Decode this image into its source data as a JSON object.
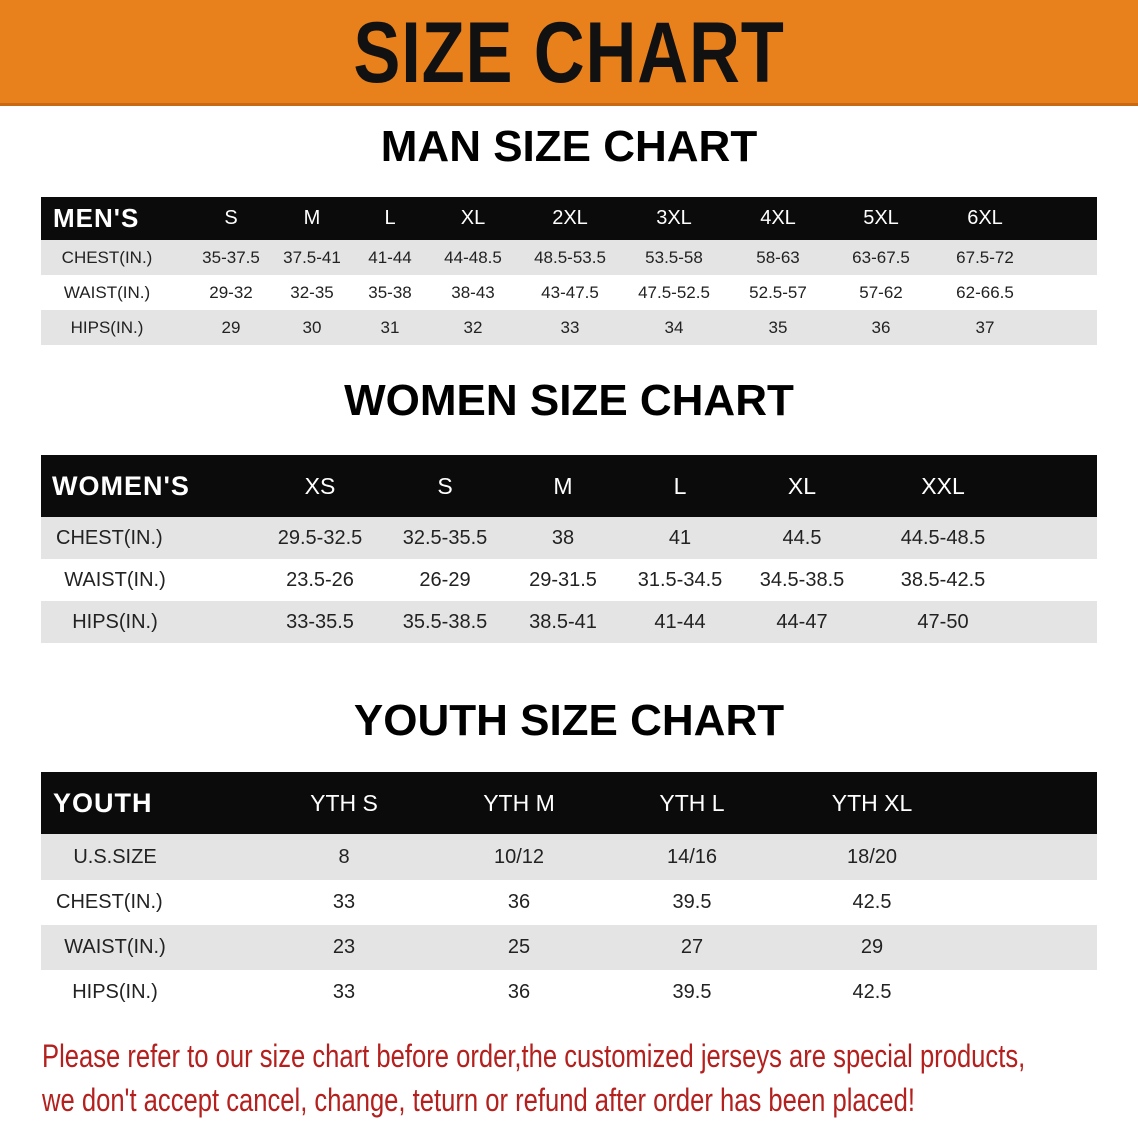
{
  "banner_title": "SIZE CHART",
  "colors": {
    "banner": "#e8801c",
    "header_row": "#0b0b0b",
    "notice_text": "#b3201e"
  },
  "men": {
    "title": "MAN SIZE CHART",
    "header": [
      "MEN'S",
      "S",
      "M",
      "L",
      "XL",
      "2XL",
      "3XL",
      "4XL",
      "5XL",
      "6XL"
    ],
    "rows": [
      [
        "CHEST(IN.)",
        "35-37.5",
        "37.5-41",
        "41-44",
        "44-48.5",
        "48.5-53.5",
        "53.5-58",
        "58-63",
        "63-67.5",
        "67.5-72"
      ],
      [
        "WAIST(IN.)",
        "29-32",
        "32-35",
        "35-38",
        "38-43",
        "43-47.5",
        "47.5-52.5",
        "52.5-57",
        "57-62",
        "62-66.5"
      ],
      [
        "HIPS(IN.)",
        "29",
        "30",
        "31",
        "32",
        "33",
        "34",
        "35",
        "36",
        "37"
      ]
    ]
  },
  "women": {
    "title": "WOMEN SIZE CHART",
    "header": [
      "WOMEN'S",
      "XS",
      "S",
      "M",
      "L",
      "XL",
      "XXL"
    ],
    "rows": [
      [
        "CHEST(IN.)",
        "29.5-32.5",
        "32.5-35.5",
        "38",
        "41",
        "44.5",
        "44.5-48.5"
      ],
      [
        "WAIST(IN.)",
        "23.5-26",
        "26-29",
        "29-31.5",
        "31.5-34.5",
        "34.5-38.5",
        "38.5-42.5"
      ],
      [
        "HIPS(IN.)",
        "33-35.5",
        "35.5-38.5",
        "38.5-41",
        "41-44",
        "44-47",
        "47-50"
      ]
    ]
  },
  "youth": {
    "title": "YOUTH SIZE CHART",
    "header": [
      "YOUTH",
      "YTH S",
      "YTH M",
      "YTH L",
      "YTH XL"
    ],
    "rows": [
      [
        "U.S.SIZE",
        "8",
        "10/12",
        "14/16",
        "18/20"
      ],
      [
        "CHEST(IN.)",
        "33",
        "36",
        "39.5",
        "42.5"
      ],
      [
        "WAIST(IN.)",
        "23",
        "25",
        "27",
        "29"
      ],
      [
        "HIPS(IN.)",
        "33",
        "36",
        "39.5",
        "42.5"
      ]
    ]
  },
  "notice": {
    "line1": "Please refer to our size chart before order,the customized jerseys are special products,",
    "line2": "we don't accept cancel, change, teturn or refund after order has been placed!"
  }
}
